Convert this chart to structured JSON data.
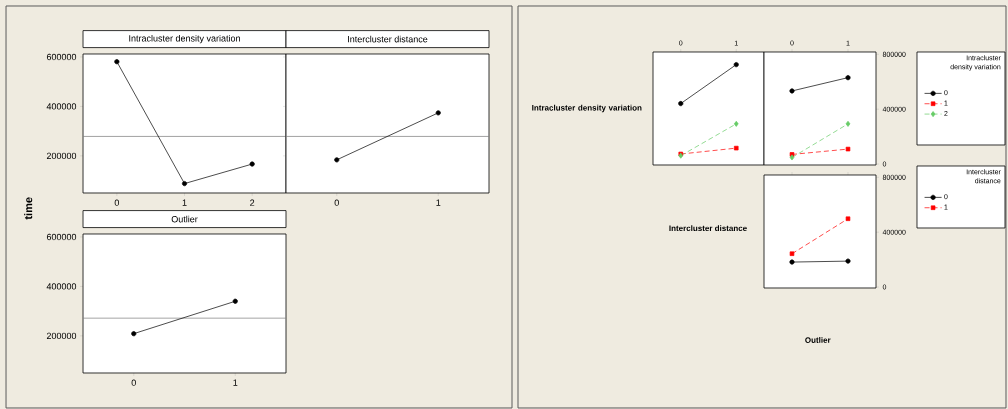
{
  "chart_data": [
    {
      "type": "line",
      "title": "Intracluster density variation",
      "ylabel": "time",
      "categories": [
        "0",
        "1",
        "2"
      ],
      "values": [
        581000,
        88000,
        167000
      ],
      "color": "#000000",
      "marker": "circle",
      "ylim": [
        50000,
        612000
      ],
      "yticks": [
        200000,
        400000,
        600000
      ],
      "ref_lines": [
        {
          "axis": "y",
          "value": 279000,
          "color": "#808080"
        }
      ]
    },
    {
      "type": "line",
      "title": "Intercluster distance",
      "categories": [
        "0",
        "1"
      ],
      "values": [
        184000,
        374000
      ],
      "color": "#000000",
      "marker": "circle",
      "ylim": [
        50000,
        612000
      ],
      "yticks": [
        200000,
        400000,
        600000
      ],
      "tick_labels": "x",
      "ref_lines": [
        {
          "axis": "y",
          "value": 279000,
          "color": "#808080"
        }
      ]
    },
    {
      "type": "line",
      "title": "Outlier",
      "categories": [
        "0",
        "1"
      ],
      "values": [
        209000,
        340000
      ],
      "color": "#000000",
      "marker": "circle",
      "ylim": [
        50000,
        612000
      ],
      "yticks": [
        200000,
        400000,
        600000
      ],
      "ref_lines": [
        {
          "axis": "y",
          "value": 272000,
          "color": "#808080"
        }
      ]
    },
    {
      "type": "line",
      "ylabel": "Intracluster density variation",
      "legend_title": "Intracluster density variation",
      "legend": "right",
      "categories": [
        "0",
        "1"
      ],
      "ylim": [
        -7000,
        817000
      ],
      "yticks": [
        0,
        400000,
        800000
      ],
      "tick_labels": "x",
      "series": [
        {
          "name": "0",
          "color": "#000000",
          "marker": "circle",
          "line_style": "solid",
          "values": [
            441000,
            725000
          ]
        },
        {
          "name": "1",
          "color": "#ff0000",
          "marker": "square",
          "line_style": "dashed",
          "values": [
            73000,
            116000
          ]
        },
        {
          "name": "2",
          "color": "#66cc66",
          "marker": "diamond",
          "line_style": "dashed",
          "values": [
            61000,
            293000
          ]
        }
      ]
    },
    {
      "type": "line",
      "categories": [
        "0",
        "1"
      ],
      "ylim": [
        -7000,
        817000
      ],
      "yticks": [
        0,
        400000,
        800000
      ],
      "series": [
        {
          "color": "#000000",
          "marker": "circle",
          "line_style": "solid",
          "values": [
            533000,
            630000
          ]
        },
        {
          "color": "#ff0000",
          "marker": "square",
          "line_style": "dashed",
          "values": [
            70000,
            109000
          ]
        },
        {
          "color": "#66cc66",
          "marker": "diamond",
          "line_style": "dashed",
          "values": [
            48000,
            293000
          ]
        }
      ]
    },
    {
      "type": "line",
      "ylabel": "Intercluster distance",
      "xlabel": "Outlier",
      "legend_title": "Intercluster distance",
      "legend": "right",
      "categories": [
        "0",
        "1"
      ],
      "ylim": [
        -7000,
        817000
      ],
      "yticks": [
        0,
        400000,
        800000
      ],
      "tick_labels": "y",
      "series": [
        {
          "name": "0",
          "color": "#000000",
          "marker": "circle",
          "line_style": "solid",
          "values": [
            182000,
            189000
          ]
        },
        {
          "name": "1",
          "color": "#ff0000",
          "marker": "square",
          "line_style": "dashed",
          "values": [
            243000,
            498000
          ]
        }
      ]
    }
  ]
}
